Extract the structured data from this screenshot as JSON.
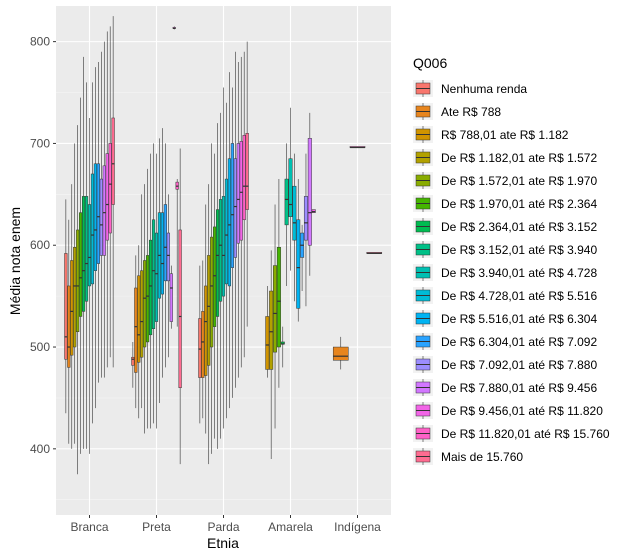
{
  "chart_data": {
    "type": "box",
    "title": "",
    "xlabel": "Etnia",
    "ylabel": "Média nota enem",
    "ylim": [
      335,
      835
    ],
    "yticks": [
      400,
      500,
      600,
      700,
      800
    ],
    "grid": true,
    "legend_position": "right",
    "legend_title": "Q006",
    "categories": [
      "Branca",
      "Preta",
      "Parda",
      "Amarela",
      "Indígena"
    ],
    "series": [
      {
        "name": "Nenhuma renda",
        "color": "#F8766D",
        "boxes": [
          [
            435,
            488,
            510,
            592,
            645
          ],
          [
            460,
            482,
            488,
            490,
            505
          ],
          [
            425,
            470,
            498,
            528,
            580
          ],
          null,
          null
        ]
      },
      {
        "name": "Ate R$ 788",
        "color": "#E7851E",
        "boxes": [
          [
            405,
            480,
            500,
            560,
            625
          ],
          [
            440,
            475,
            520,
            558,
            590
          ],
          [
            430,
            470,
            505,
            535,
            585
          ],
          null,
          [
            478,
            487,
            491,
            500,
            510
          ]
        ]
      },
      {
        "name": "R$ 788,01 ate R$ 1.182",
        "color": "#D09400",
        "boxes": [
          [
            400,
            492,
            535,
            585,
            660
          ],
          [
            430,
            485,
            512,
            570,
            600
          ],
          [
            415,
            472,
            525,
            560,
            640
          ],
          [
            470,
            478,
            502,
            530,
            560
          ],
          null
        ]
      },
      {
        "name": "De R$ 1.182,01 ate R$ 1.572",
        "color": "#B2A100",
        "boxes": [
          [
            405,
            500,
            560,
            598,
            700
          ],
          [
            440,
            490,
            525,
            575,
            650
          ],
          [
            385,
            482,
            540,
            590,
            660
          ],
          [
            390,
            478,
            515,
            555,
            595
          ],
          null
        ]
      },
      {
        "name": "De R$ 1.572,01 ate R$ 1.970",
        "color": "#89AC00",
        "boxes": [
          [
            375,
            515,
            560,
            615,
            718
          ],
          [
            415,
            500,
            548,
            585,
            660
          ],
          [
            395,
            500,
            560,
            608,
            700
          ],
          [
            420,
            495,
            533,
            580,
            640
          ],
          null
        ]
      },
      {
        "name": "De R$ 1.970,01 até R$ 2.364",
        "color": "#45B500",
        "boxes": [
          [
            395,
            530,
            568,
            632,
            745
          ],
          [
            420,
            505,
            550,
            590,
            675
          ],
          [
            410,
            520,
            570,
            618,
            690
          ],
          [
            460,
            500,
            545,
            598,
            665
          ],
          null
        ]
      },
      {
        "name": "De R$ 2.364,01 até R$ 3.152",
        "color": "#00BC51",
        "boxes": [
          [
            400,
            535,
            575,
            648,
            785
          ],
          [
            420,
            512,
            560,
            605,
            690
          ],
          [
            400,
            530,
            590,
            635,
            720
          ],
          [
            480,
            503,
            503,
            505,
            520
          ],
          null
        ]
      },
      {
        "name": "De R$ 3.152,01 até R$ 3.940",
        "color": "#00C087",
        "boxes": [
          [
            400,
            545,
            582,
            648,
            760
          ],
          [
            425,
            518,
            575,
            625,
            700
          ],
          [
            410,
            545,
            600,
            645,
            730
          ],
          [
            560,
            620,
            645,
            665,
            700
          ],
          null
        ]
      },
      {
        "name": "De R$ 3.940,01 até R$ 4.728",
        "color": "#00C0B2",
        "boxes": [
          [
            395,
            560,
            588,
            640,
            725
          ],
          [
            420,
            525,
            572,
            612,
            690
          ],
          [
            420,
            550,
            590,
            648,
            755
          ],
          [
            575,
            628,
            640,
            685,
            735
          ],
          null
        ]
      },
      {
        "name": "De R$ 4.728,01 até R$ 5.516",
        "color": "#00BCD6",
        "boxes": [
          [
            425,
            562,
            610,
            670,
            760
          ],
          [
            445,
            548,
            590,
            632,
            705
          ],
          [
            430,
            562,
            610,
            665,
            740
          ],
          [
            545,
            605,
            622,
            658,
            690
          ],
          null
        ]
      },
      {
        "name": "De R$ 5.516,01 até R$ 6.304",
        "color": "#00B3F2",
        "boxes": [
          [
            440,
            575,
            615,
            680,
            775
          ],
          [
            470,
            552,
            582,
            632,
            715
          ],
          [
            440,
            560,
            620,
            685,
            770
          ],
          [
            525,
            538,
            578,
            625,
            665
          ],
          null
        ]
      },
      {
        "name": "De R$ 6.304,01 até R$ 7.092",
        "color": "#29A3FF",
        "boxes": [
          [
            465,
            582,
            628,
            680,
            780
          ],
          [
            480,
            565,
            598,
            640,
            700
          ],
          [
            450,
            578,
            630,
            700,
            755
          ],
          [
            555,
            588,
            600,
            612,
            620
          ],
          null
        ]
      },
      {
        "name": "De R$ 7.092,01 até R$ 7.880",
        "color": "#9C8DFF",
        "boxes": [
          [
            470,
            590,
            620,
            665,
            790
          ],
          [
            490,
            565,
            590,
            612,
            650
          ],
          [
            460,
            588,
            638,
            685,
            790
          ],
          [
            540,
            605,
            622,
            648,
            690
          ],
          null
        ]
      },
      {
        "name": "De R$ 7.880,01 até R$ 9.456",
        "color": "#D277FF",
        "boxes": [
          [
            470,
            590,
            632,
            678,
            800
          ],
          [
            518,
            525,
            558,
            572,
            580
          ],
          [
            470,
            602,
            645,
            700,
            780
          ],
          [
            570,
            600,
            632,
            705,
            730
          ],
          null
        ]
      },
      {
        "name": "De R$ 9.456,01 até R$ 11.820",
        "color": "#F265E7",
        "boxes": [
          [
            480,
            605,
            640,
            690,
            810
          ],
          [
            812,
            813,
            813,
            814,
            815
          ],
          [
            480,
            605,
            652,
            702,
            785
          ],
          [
            632,
            632,
            633,
            635,
            635
          ],
          null
        ]
      },
      {
        "name": "De R$ 11.820,01 até R$ 15.760",
        "color": "#FF61C7",
        "boxes": [
          [
            490,
            612,
            660,
            700,
            815
          ],
          [
            520,
            655,
            658,
            662,
            665
          ],
          [
            490,
            625,
            658,
            708,
            790
          ],
          null,
          [
            696,
            696,
            696,
            697,
            697
          ]
        ]
      },
      {
        "name": "Mais de 15.760",
        "color": "#FF6C91",
        "boxes": [
          [
            480,
            640,
            680,
            725,
            825
          ],
          [
            385,
            460,
            530,
            615,
            695
          ],
          [
            520,
            635,
            658,
            710,
            800
          ],
          null,
          [
            592,
            592,
            592,
            593,
            593
          ]
        ]
      }
    ]
  }
}
